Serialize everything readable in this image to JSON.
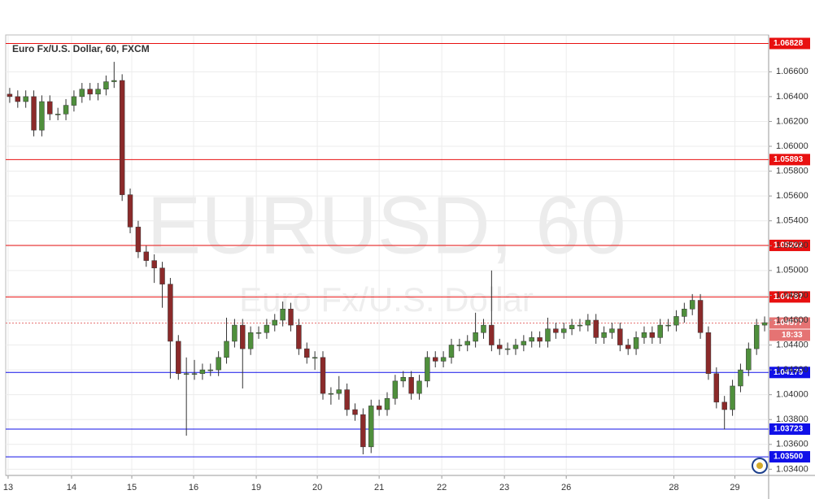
{
  "chart_data": {
    "type": "candlestick",
    "title": "Euro Fx/U.S. Dollar, 60, FXCM",
    "watermark_symbol": "EURUSD, 60",
    "watermark_description": "Euro Fx/U.S. Dollar",
    "up_color": "#4f8f3c",
    "down_color": "#8b2a2a",
    "grid": true,
    "xlim": [
      0,
      95
    ],
    "xticks": [
      {
        "value": 0.3,
        "label": "13"
      },
      {
        "value": 8.2,
        "label": "14"
      },
      {
        "value": 15.7,
        "label": "15"
      },
      {
        "value": 23.4,
        "label": "16"
      },
      {
        "value": 31.2,
        "label": "19"
      },
      {
        "value": 38.8,
        "label": "20"
      },
      {
        "value": 46.5,
        "label": "21"
      },
      {
        "value": 54.3,
        "label": "22"
      },
      {
        "value": 62.1,
        "label": "23"
      },
      {
        "value": 69.8,
        "label": "26"
      },
      {
        "value": 83.2,
        "label": "28"
      },
      {
        "value": 90.8,
        "label": "29"
      }
    ],
    "ylim": [
      1.0335,
      1.0689
    ],
    "yticks": [
      {
        "value": 1.034,
        "label": "1.03400"
      },
      {
        "value": 1.036,
        "label": "1.03600"
      },
      {
        "value": 1.038,
        "label": "1.03800"
      },
      {
        "value": 1.04,
        "label": "1.04000"
      },
      {
        "value": 1.042,
        "label": "1.04200"
      },
      {
        "value": 1.044,
        "label": "1.04400"
      },
      {
        "value": 1.046,
        "label": "1.04600"
      },
      {
        "value": 1.048,
        "label": "1.04800"
      },
      {
        "value": 1.05,
        "label": "1.05000"
      },
      {
        "value": 1.052,
        "label": "1.05200"
      },
      {
        "value": 1.054,
        "label": "1.05400"
      },
      {
        "value": 1.056,
        "label": "1.05600"
      },
      {
        "value": 1.058,
        "label": "1.05800"
      },
      {
        "value": 1.06,
        "label": "1.06000"
      },
      {
        "value": 1.062,
        "label": "1.06200"
      },
      {
        "value": 1.064,
        "label": "1.06400"
      },
      {
        "value": 1.066,
        "label": "1.06600"
      }
    ],
    "levels": [
      {
        "value": 1.06828,
        "color": "#e81010"
      },
      {
        "value": 1.05893,
        "color": "#e81010"
      },
      {
        "value": 1.05202,
        "color": "#e81010"
      },
      {
        "value": 1.04787,
        "color": "#e81010"
      },
      {
        "value": 1.04179,
        "color": "#1010e8"
      },
      {
        "value": 1.03723,
        "color": "#1010e8"
      },
      {
        "value": 1.035,
        "label": "1.03500",
        "color": "#1010e8"
      }
    ],
    "last_price": {
      "value": 1.04577,
      "color": "#e57373"
    },
    "countdown": "18:33",
    "open": [
      1.0642,
      1.064,
      1.0636,
      1.064,
      1.0613,
      1.0636,
      1.0626,
      1.0626,
      1.0633,
      1.064,
      1.0646,
      1.0642,
      1.0646,
      1.0652,
      1.0653,
      1.0561,
      1.0535,
      1.0515,
      1.0508,
      1.0502,
      1.0489,
      1.0443,
      1.0417,
      1.0417,
      1.0417,
      1.042,
      1.042,
      1.043,
      1.0443,
      1.0456,
      1.0437,
      1.045,
      1.045,
      1.0456,
      1.046,
      1.0469,
      1.0456,
      1.0437,
      1.043,
      1.043,
      1.0401,
      1.0401,
      1.0404,
      1.0388,
      1.0384,
      1.0358,
      1.0391,
      1.0388,
      1.0397,
      1.0411,
      1.0414,
      1.0401,
      1.0411,
      1.043,
      1.0427,
      1.043,
      1.044,
      1.044,
      1.0443,
      1.045,
      1.0456,
      1.044,
      1.0437,
      1.0437,
      1.044,
      1.0443,
      1.0446,
      1.0443,
      1.0453,
      1.045,
      1.0453,
      1.0456,
      1.0456,
      1.046,
      1.0446,
      1.045,
      1.0453,
      1.044,
      1.0437,
      1.0446,
      1.045,
      1.0446,
      1.0456,
      1.0456,
      1.0463,
      1.0469,
      1.0476,
      1.045,
      1.0417,
      1.0394,
      1.0388,
      1.0407,
      1.042,
      1.0437,
      1.0456
    ],
    "high": [
      1.0647,
      1.0645,
      1.0645,
      1.0645,
      1.0641,
      1.0641,
      1.0631,
      1.0638,
      1.0645,
      1.0651,
      1.0651,
      1.0651,
      1.0657,
      1.0668,
      1.0658,
      1.0566,
      1.054,
      1.052,
      1.0513,
      1.0507,
      1.0494,
      1.0448,
      1.043,
      1.0428,
      1.0425,
      1.0425,
      1.0435,
      1.0462,
      1.0461,
      1.0461,
      1.0455,
      1.0455,
      1.0461,
      1.0465,
      1.0475,
      1.0474,
      1.0461,
      1.0442,
      1.0435,
      1.0435,
      1.0406,
      1.0415,
      1.0409,
      1.0393,
      1.0389,
      1.0396,
      1.0396,
      1.0402,
      1.0416,
      1.0419,
      1.0419,
      1.0416,
      1.0435,
      1.0435,
      1.0435,
      1.0445,
      1.0445,
      1.0448,
      1.0466,
      1.0461,
      1.05,
      1.0445,
      1.0442,
      1.0445,
      1.0448,
      1.0451,
      1.0451,
      1.0462,
      1.0458,
      1.0458,
      1.0461,
      1.0461,
      1.0465,
      1.0465,
      1.0455,
      1.0458,
      1.0458,
      1.0445,
      1.0451,
      1.0455,
      1.0455,
      1.0461,
      1.0461,
      1.0468,
      1.0474,
      1.0481,
      1.0481,
      1.0455,
      1.0422,
      1.0399,
      1.0412,
      1.0425,
      1.0442,
      1.0461,
      1.0463
    ],
    "low": [
      1.0635,
      1.0631,
      1.0631,
      1.0608,
      1.0608,
      1.0621,
      1.0621,
      1.0621,
      1.0628,
      1.0635,
      1.0637,
      1.0637,
      1.0641,
      1.0647,
      1.0556,
      1.053,
      1.051,
      1.0503,
      1.049,
      1.047,
      1.0413,
      1.0412,
      1.0367,
      1.0412,
      1.0412,
      1.0415,
      1.0415,
      1.0425,
      1.0438,
      1.0405,
      1.0432,
      1.0445,
      1.0445,
      1.0451,
      1.0455,
      1.0451,
      1.0432,
      1.0425,
      1.042,
      1.0396,
      1.0392,
      1.0396,
      1.0383,
      1.0379,
      1.0352,
      1.0353,
      1.0383,
      1.0383,
      1.0392,
      1.0406,
      1.0396,
      1.0396,
      1.0406,
      1.0422,
      1.0422,
      1.0425,
      1.0435,
      1.0435,
      1.0438,
      1.0445,
      1.0435,
      1.0432,
      1.0432,
      1.0432,
      1.0435,
      1.0438,
      1.0438,
      1.0438,
      1.0445,
      1.0445,
      1.0448,
      1.0451,
      1.0451,
      1.0441,
      1.0441,
      1.0445,
      1.0435,
      1.0432,
      1.0432,
      1.0441,
      1.0441,
      1.0441,
      1.0451,
      1.0451,
      1.0458,
      1.0464,
      1.0445,
      1.0412,
      1.0389,
      1.0372,
      1.0383,
      1.0402,
      1.0415,
      1.0432,
      1.0451
    ],
    "close": [
      1.064,
      1.0636,
      1.064,
      1.0613,
      1.0636,
      1.0626,
      1.0626,
      1.0633,
      1.064,
      1.0646,
      1.0642,
      1.0646,
      1.0652,
      1.0653,
      1.0561,
      1.0535,
      1.0515,
      1.0508,
      1.0502,
      1.0489,
      1.0443,
      1.0417,
      1.0417,
      1.0417,
      1.042,
      1.042,
      1.043,
      1.0443,
      1.0456,
      1.0437,
      1.045,
      1.045,
      1.0456,
      1.046,
      1.0469,
      1.0456,
      1.0437,
      1.043,
      1.043,
      1.0401,
      1.0401,
      1.0404,
      1.0388,
      1.0384,
      1.0358,
      1.0391,
      1.0388,
      1.0397,
      1.0411,
      1.0414,
      1.0401,
      1.0411,
      1.043,
      1.0427,
      1.043,
      1.044,
      1.044,
      1.0443,
      1.045,
      1.0456,
      1.044,
      1.0437,
      1.0437,
      1.044,
      1.0443,
      1.0446,
      1.0443,
      1.0453,
      1.045,
      1.0453,
      1.0456,
      1.0456,
      1.046,
      1.0446,
      1.045,
      1.0453,
      1.044,
      1.0437,
      1.0446,
      1.045,
      1.0446,
      1.0456,
      1.0456,
      1.0463,
      1.0469,
      1.0476,
      1.045,
      1.0417,
      1.0394,
      1.0388,
      1.0407,
      1.042,
      1.0437,
      1.0456,
      1.0458
    ]
  }
}
